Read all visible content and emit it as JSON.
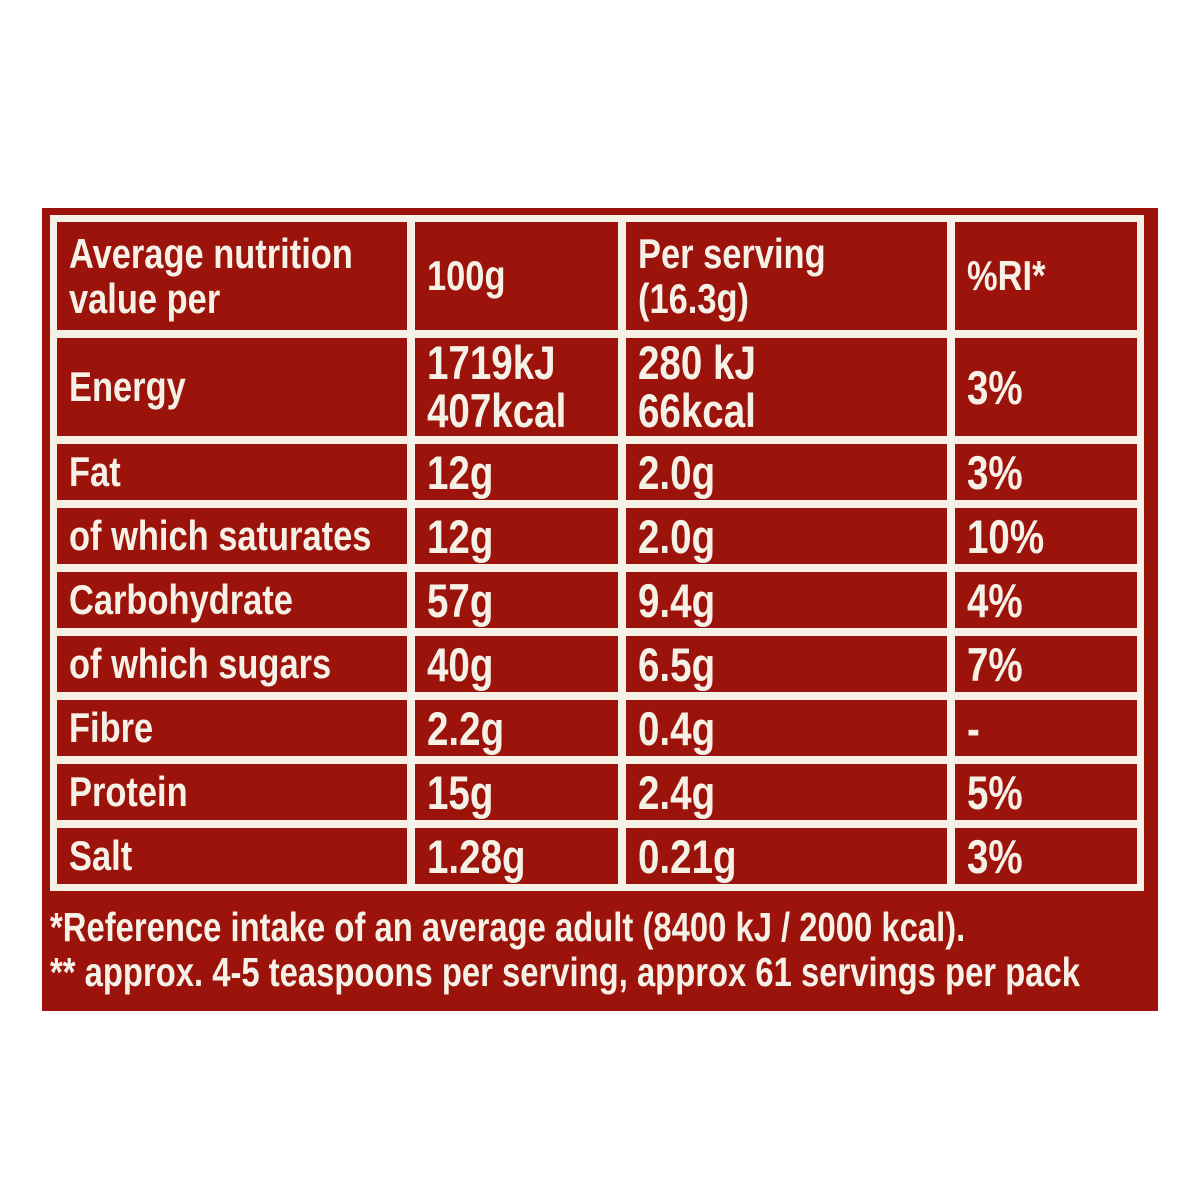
{
  "colors": {
    "panel_red": "#9c130b",
    "grid_white": "#f6f1e7",
    "text_white": "#f6f1e7",
    "page_background": "#ffffff"
  },
  "table": {
    "header": {
      "col1_line1": "Average nutrition",
      "col1_line2": "value per",
      "col2": "100g",
      "col3_line1": "Per serving",
      "col3_line2": "(16.3g)",
      "col4": "%RI*"
    },
    "rows": [
      {
        "label": "Energy",
        "per100_line1": "1719kJ",
        "per100_line2": "407kcal",
        "serving_line1": "280 kJ",
        "serving_line2": "66kcal",
        "ri": "3%"
      },
      {
        "label": "Fat",
        "per100": "12g",
        "serving": "2.0g",
        "ri": "3%"
      },
      {
        "label": "of which saturates",
        "per100": "12g",
        "serving": "2.0g",
        "ri": "10%"
      },
      {
        "label": "Carbohydrate",
        "per100": "57g",
        "serving": "9.4g",
        "ri": "4%"
      },
      {
        "label": "of which sugars",
        "per100": "40g",
        "serving": "6.5g",
        "ri": "7%"
      },
      {
        "label": "Fibre",
        "per100": "2.2g",
        "serving": "0.4g",
        "ri": "-"
      },
      {
        "label": "Protein",
        "per100": "15g",
        "serving": "2.4g",
        "ri": "5%"
      },
      {
        "label": "Salt",
        "per100": "1.28g",
        "serving": "0.21g",
        "ri": "3%"
      }
    ]
  },
  "footnotes": {
    "line1": "*Reference intake of an average adult (8400 kJ / 2000 kcal).",
    "line2": "** approx. 4-5 teaspoons per serving, approx 61 servings per pack"
  }
}
